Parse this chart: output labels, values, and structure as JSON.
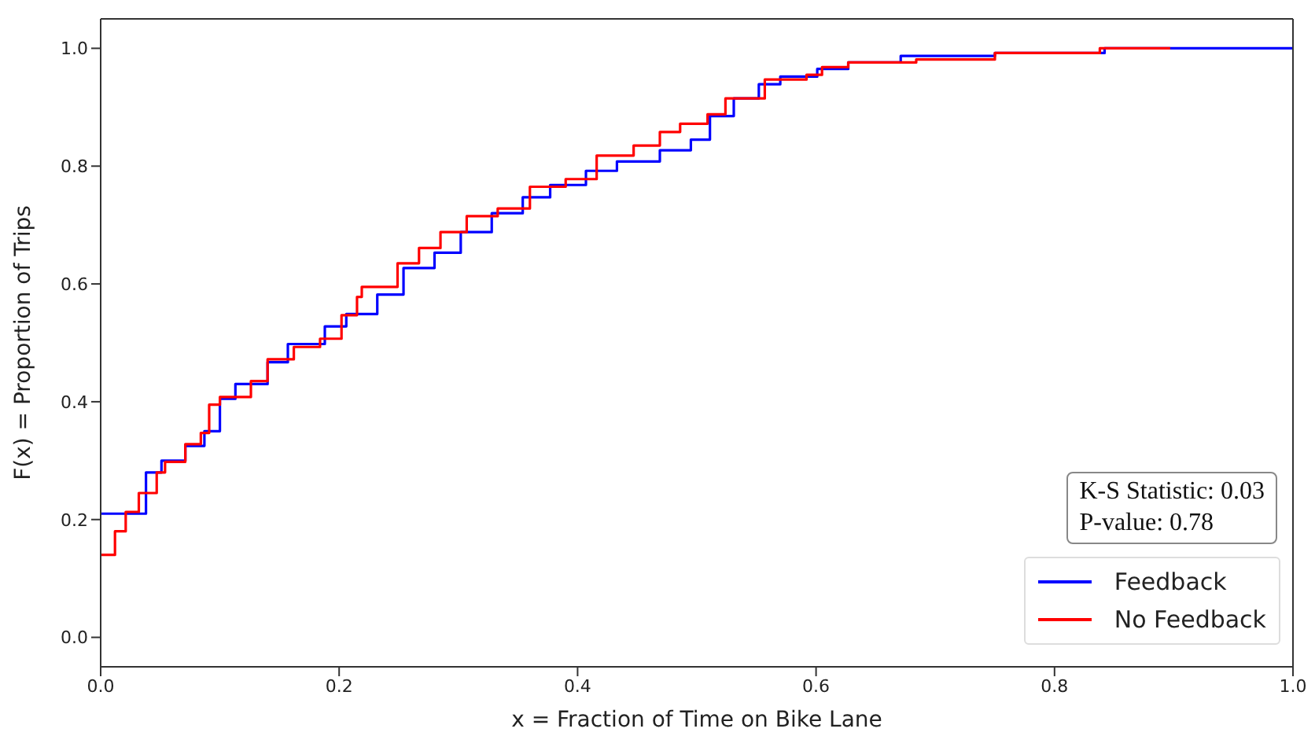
{
  "chart_data": {
    "type": "step",
    "xlabel": "x = Fraction of Time on Bike Lane",
    "ylabel": "F(x) = Proportion of Trips",
    "xlim": [
      0,
      1
    ],
    "xticks": [
      {
        "value": 0,
        "label": "0.0"
      },
      0.2,
      0.4,
      0.6,
      0.8,
      {
        "value": 1,
        "label": "1.0"
      }
    ],
    "ylim": [
      -0.05,
      1.05
    ],
    "yticks": [
      {
        "value": 0,
        "label": "0.0"
      },
      0.2,
      0.4,
      0.6,
      0.8,
      {
        "value": 1,
        "label": "1.0"
      }
    ],
    "legend": "bottom right",
    "annotations": [
      "K-S Statistic: 0.03",
      "P-value: 0.78"
    ],
    "series": [
      {
        "name": "Feedback",
        "color": "#0000ff",
        "x": [
          0,
          0.038,
          0.051,
          0.071,
          0.087,
          0.1,
          0.113,
          0.14,
          0.157,
          0.188,
          0.206,
          0.232,
          0.254,
          0.28,
          0.302,
          0.328,
          0.354,
          0.377,
          0.407,
          0.433,
          0.469,
          0.495,
          0.511,
          0.531,
          0.552,
          0.57,
          0.601,
          0.627,
          0.671,
          0.75,
          0.842,
          1.0
        ],
        "values": [
          0.21,
          0.28,
          0.3,
          0.325,
          0.35,
          0.405,
          0.43,
          0.467,
          0.498,
          0.528,
          0.549,
          0.582,
          0.627,
          0.653,
          0.688,
          0.72,
          0.747,
          0.768,
          0.792,
          0.808,
          0.827,
          0.845,
          0.885,
          0.915,
          0.939,
          0.952,
          0.965,
          0.976,
          0.987,
          0.992,
          1.0,
          1.0
        ]
      },
      {
        "name": "No Feedback",
        "color": "#ff0000",
        "x": [
          0,
          0.012,
          0.021,
          0.032,
          0.047,
          0.054,
          0.071,
          0.084,
          0.091,
          0.1,
          0.126,
          0.14,
          0.162,
          0.184,
          0.202,
          0.215,
          0.219,
          0.249,
          0.267,
          0.285,
          0.307,
          0.333,
          0.36,
          0.39,
          0.416,
          0.447,
          0.469,
          0.486,
          0.509,
          0.524,
          0.557,
          0.592,
          0.605,
          0.627,
          0.684,
          0.75,
          0.838,
          0.897
        ],
        "values": [
          0.14,
          0.18,
          0.213,
          0.245,
          0.28,
          0.298,
          0.328,
          0.347,
          0.395,
          0.408,
          0.435,
          0.472,
          0.493,
          0.507,
          0.547,
          0.578,
          0.595,
          0.635,
          0.661,
          0.688,
          0.715,
          0.728,
          0.765,
          0.778,
          0.818,
          0.835,
          0.858,
          0.872,
          0.888,
          0.915,
          0.947,
          0.955,
          0.968,
          0.976,
          0.981,
          0.992,
          1.0,
          1.0
        ]
      }
    ]
  }
}
